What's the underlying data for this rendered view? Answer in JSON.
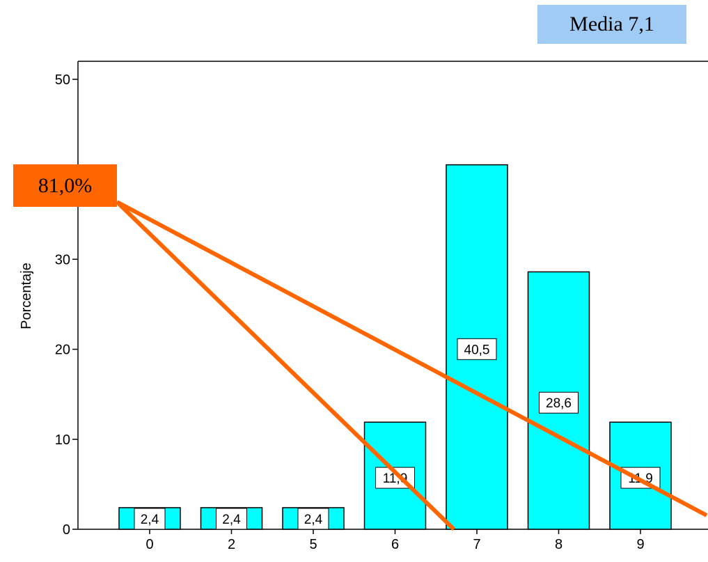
{
  "chart_data": {
    "type": "bar",
    "categories": [
      "0",
      "2",
      "5",
      "6",
      "7",
      "8",
      "9"
    ],
    "values": [
      2.4,
      2.4,
      2.4,
      11.9,
      40.5,
      28.6,
      11.9
    ],
    "value_labels": [
      "2,4",
      "2,4",
      "2,4",
      "11,9",
      "40,5",
      "28,6",
      "11,9"
    ],
    "ylabel": "Porcentaje",
    "xlabel": "",
    "ylim": [
      0,
      52
    ],
    "y_ticks": [
      "0",
      "10",
      "20",
      "30",
      "50"
    ],
    "bar_color": "#00ffff",
    "grid": false
  },
  "annotations": {
    "media_label": "Media 7,1",
    "percent_label": "81,0%",
    "media_color": "#9fcbf5",
    "percent_color": "#ff6600",
    "line_color": "#ff6600"
  }
}
